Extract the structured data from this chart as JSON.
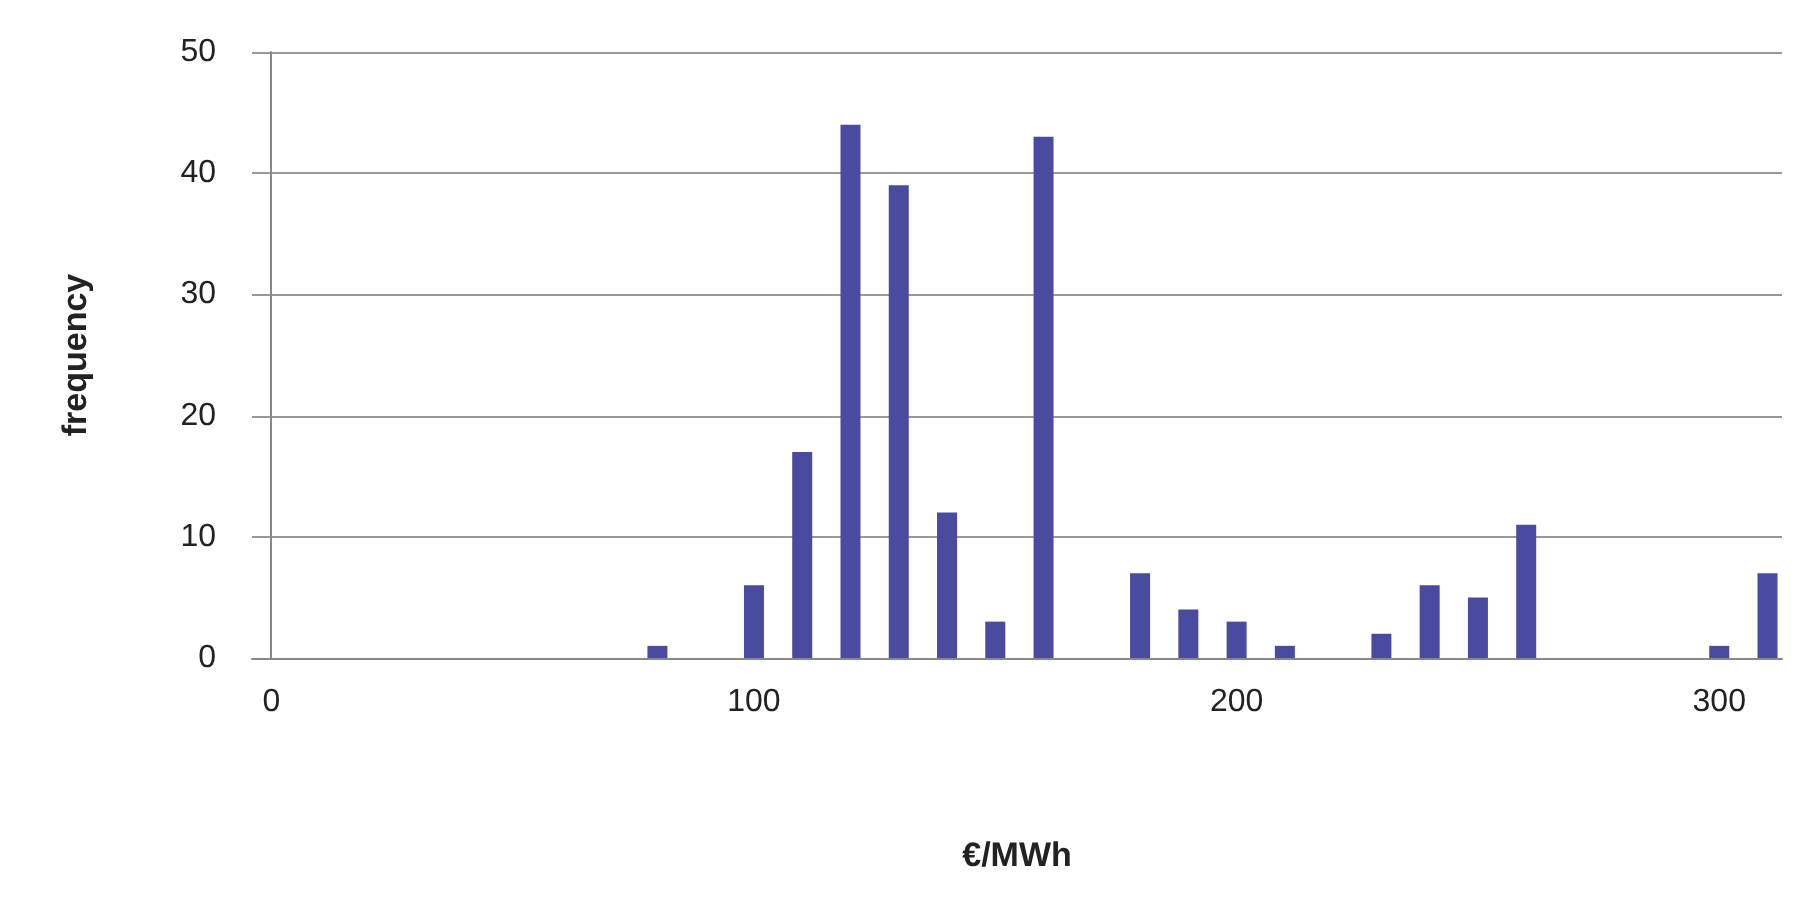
{
  "chart_data": {
    "type": "bar",
    "xlabel": "€/MWh",
    "ylabel": "frequency",
    "x": [
      80,
      100,
      110,
      120,
      130,
      140,
      150,
      160,
      180,
      190,
      200,
      210,
      230,
      240,
      250,
      260,
      300,
      310
    ],
    "values": [
      1,
      6,
      17,
      44,
      39,
      12,
      3,
      43,
      7,
      4,
      3,
      1,
      2,
      6,
      5,
      11,
      1,
      7
    ],
    "color": "#4a4aa0",
    "xlim": [
      -4,
      313
    ],
    "xticks": [
      0,
      100,
      200,
      300
    ],
    "ylim": [
      0,
      50
    ],
    "yticks": [
      0,
      10,
      20,
      30,
      40,
      50
    ],
    "grid": "y"
  }
}
